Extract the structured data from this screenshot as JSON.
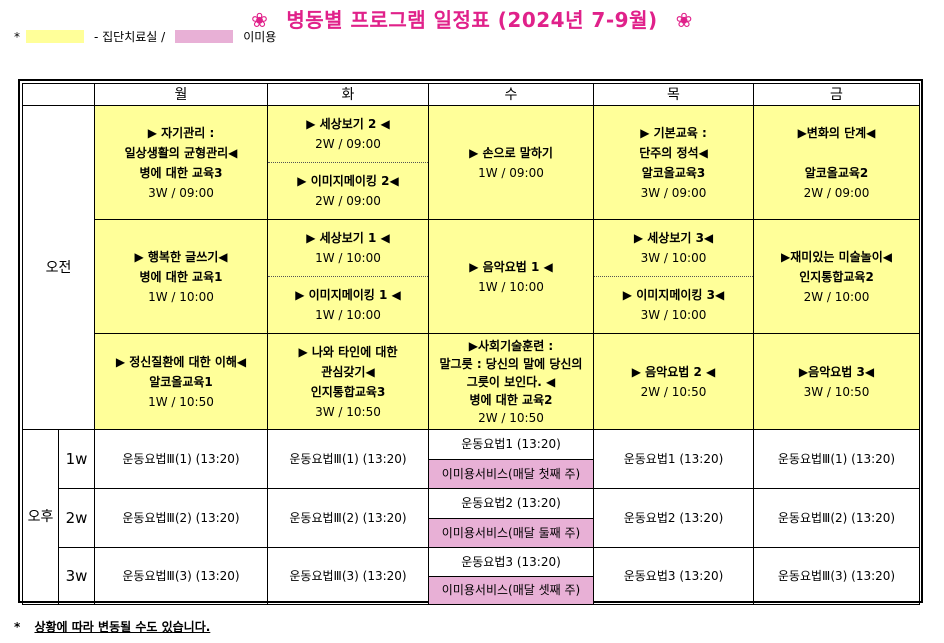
{
  "title": {
    "flower_left": "❀",
    "text": "병동별 프로그램 일정표 (2024년 7-9월)",
    "flower_right": "❀"
  },
  "legend": {
    "bullet": "*",
    "yellow_label": "- 집단치료실 /",
    "pink_label": "이미용",
    "colors": {
      "yellow": "#ffff99",
      "pink": "#e8b0d6"
    }
  },
  "header": {
    "days": [
      "월",
      "화",
      "수",
      "목",
      "금"
    ]
  },
  "sessions": {
    "am": "오전",
    "pm": "오후"
  },
  "am_rows": [
    {
      "mon": [
        "▶ 자기관리 :",
        "일상생활의 균형관리◀",
        "병에 대한 교육3",
        "3W / 09:00"
      ],
      "tue_top": [
        "▶ 세상보기 2 ◀",
        "2W / 09:00"
      ],
      "tue_bottom": [
        "▶ 이미지메이킹 2◀",
        "2W / 09:00"
      ],
      "wed": [
        "▶ 손으로 말하기",
        "1W / 09:00"
      ],
      "thu": [
        "▶ 기본교육 :",
        "단주의 정석◀",
        "알코올교육3",
        "3W / 09:00"
      ],
      "fri": [
        "▶변화의 단계◀",
        "",
        "알코올교육2",
        "2W / 09:00"
      ]
    },
    {
      "mon": [
        "▶ 행복한 글쓰기◀",
        "병에 대한 교육1",
        "1W / 10:00"
      ],
      "tue_top": [
        "▶ 세상보기 1 ◀",
        "1W / 10:00"
      ],
      "tue_bottom": [
        "▶ 이미지메이킹 1 ◀",
        "1W / 10:00"
      ],
      "wed": [
        "▶ 음악요법 1 ◀",
        "1W / 10:00"
      ],
      "thu_top": [
        "▶ 세상보기 3◀",
        "3W / 10:00"
      ],
      "thu_bottom": [
        "▶ 이미지메이킹 3◀",
        "3W / 10:00"
      ],
      "fri": [
        "▶재미있는 미술놀이◀",
        "인지통합교육2",
        "2W / 10:00"
      ]
    },
    {
      "mon": [
        "▶ 정신질환에 대한 이해◀",
        "알코올교육1",
        "1W / 10:50"
      ],
      "tue": [
        "▶ 나와 타인에 대한",
        "관심갖기◀",
        "인지통합교육3",
        "3W / 10:50"
      ],
      "wed": [
        "▶사회기술훈련 :",
        "말그릇 : 당신의 말에 당신의",
        "그릇이 보인다. ◀",
        "병에 대한 교육2",
        "2W / 10:50"
      ],
      "thu": [
        "▶ 음악요법 2 ◀",
        "2W / 10:50"
      ],
      "fri": [
        "▶음악요법 3◀",
        "3W / 10:50"
      ]
    }
  ],
  "pm_rows": [
    {
      "week": "1w",
      "mon": "운동요법Ⅲ(1) (13:20)",
      "tue": "운동요법Ⅲ(1) (13:20)",
      "wed_top": "운동요법1 (13:20)",
      "wed_bottom": "이미용서비스(매달 첫째 주)",
      "thu": "운동요법1 (13:20)",
      "fri": "운동요법Ⅲ(1) (13:20)"
    },
    {
      "week": "2w",
      "mon": "운동요법Ⅲ(2) (13:20)",
      "tue": "운동요법Ⅲ(2) (13:20)",
      "wed_top": "운동요법2 (13:20)",
      "wed_bottom": "이미용서비스(매달 둘째 주)",
      "thu": "운동요법2 (13:20)",
      "fri": "운동요법Ⅲ(2) (13:20)"
    },
    {
      "week": "3w",
      "mon": "운동요법Ⅲ(3) (13:20)",
      "tue": "운동요법Ⅲ(3) (13:20)",
      "wed_top": "운동요법3 (13:20)",
      "wed_bottom": "이미용서비스(매달 셋째 주)",
      "thu": "운동요법3 (13:20)",
      "fri": "운동요법Ⅲ(3) (13:20)"
    }
  ],
  "footnote": {
    "bullet": "*",
    "text": "상황에 따라 변동될 수도 있습니다."
  }
}
